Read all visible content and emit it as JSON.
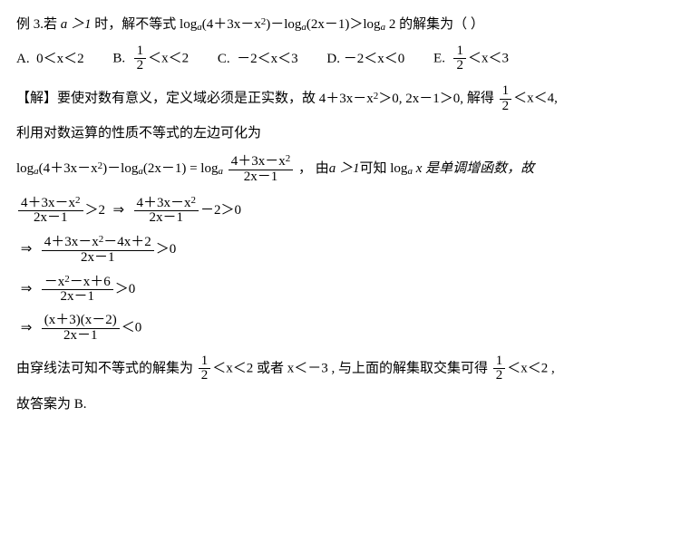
{
  "problem": {
    "label": "例 3.若",
    "condition": "时，解不等式",
    "a_gt_1": "a ＞1",
    "lhs1": "log",
    "arg1": "(4＋3x－x",
    "arg1_close": ")－log",
    "arg2": "(2x－1)＞log",
    "arg3_const": "2",
    "tail": "的解集为（  ）"
  },
  "options": {
    "A": {
      "label": "A.",
      "expr_left": "0＜x＜2"
    },
    "B": {
      "label": "B.",
      "frac_num": "1",
      "frac_den": "2",
      "tail": "＜x＜2"
    },
    "C": {
      "label": "C.",
      "expr": "－2＜x＜3"
    },
    "D": {
      "label": "D.",
      "expr": "－2＜x＜0"
    },
    "E": {
      "label": "E.",
      "frac_num": "1",
      "frac_den": "2",
      "tail": "＜x＜3"
    }
  },
  "sol": {
    "tag": "【解】",
    "t1": "要使对数有意义，定义域必须是正实数，故",
    "dom1": "4＋3x－x",
    "dom1_tail": "＞0, 2x－1＞0,",
    "t2": "解得",
    "frac_num": "1",
    "frac_den": "2",
    "dom_tail": "＜x＜4,",
    "t3": "利用对数运算的性质不等式的左边可化为",
    "eq_lhs1": "log",
    "eq_a": "a",
    "eq_arg1": "(4＋3x－x",
    "eq_arg1_close": ")－log",
    "eq_arg2": "(2x－1) = log",
    "combined_num": "4＋3x－x",
    "combined_den": "2x－1",
    "after": "，  由",
    "agt1": "a ＞1",
    "after2": "可知 log",
    "after3": " x 是单调增函数，故",
    "step1_f1_num": "4＋3x－x",
    "step1_f1_den": "2x－1",
    "gt2": "＞2",
    "step1_arrow": "⇒",
    "step1_f2_num": "4＋3x－x",
    "step1_f2_den": "2x－1",
    "minus2gt0": "－2＞0",
    "step2_num": "4＋3x－x",
    "step2_num_tail": "－4x＋2",
    "step2_den": "2x－1",
    "gt0": "＞0",
    "step3_num": "－x",
    "step3_num_mid": "－x＋6",
    "step3_den": "2x－1",
    "step4_num": "(x＋3)(x－2)",
    "step4_den": "2x－1",
    "lt0": "＜0",
    "concl1": "由穿线法可知不等式的解集为",
    "concl_frac_num": "1",
    "concl_frac_den": "2",
    "concl_mid": "＜x＜2 或者 x＜－3 , 与上面的解集取交集可得",
    "concl_tail": "＜x＜2 ,",
    "answer": "故答案为 B."
  }
}
